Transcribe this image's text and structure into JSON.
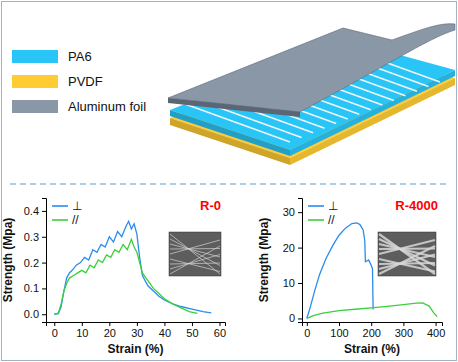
{
  "diagram": {
    "legend": [
      {
        "label": "PA6",
        "color": "#29c5f6"
      },
      {
        "label": "PVDF",
        "color": "#ffcc33"
      },
      {
        "label": "Aluminum foil",
        "color": "#8a97a6"
      }
    ]
  },
  "chart_data": [
    {
      "type": "line",
      "title": "R-0",
      "x_label": "Strain (%)",
      "y_label": "Strength (Mpa)",
      "xlim": [
        -3,
        62
      ],
      "xticks": [
        0,
        10,
        20,
        30,
        40,
        50,
        60
      ],
      "ylim": [
        -0.03,
        0.45
      ],
      "yticks": [
        {
          "value": 0,
          "label": "0.0"
        },
        0.1,
        0.2,
        0.3,
        0.4
      ],
      "legend": "upper left",
      "series": [
        {
          "name": "⊥",
          "color": "#2a8cf0",
          "x": [
            0,
            1.5,
            2.5,
            3.5,
            4.5,
            5.5,
            6.5,
            8,
            9.5,
            11,
            12.5,
            14,
            15.5,
            17,
            18.5,
            20,
            21.5,
            23,
            24.5,
            26,
            27,
            28,
            29,
            30,
            31,
            32,
            34,
            36,
            38,
            40,
            43,
            46,
            50,
            54,
            57
          ],
          "values": [
            0,
            0.002,
            0.03,
            0.09,
            0.14,
            0.16,
            0.17,
            0.19,
            0.2,
            0.22,
            0.21,
            0.25,
            0.24,
            0.27,
            0.26,
            0.3,
            0.28,
            0.32,
            0.3,
            0.34,
            0.36,
            0.33,
            0.35,
            0.31,
            0.22,
            0.15,
            0.11,
            0.09,
            0.07,
            0.055,
            0.04,
            0.03,
            0.02,
            0.01,
            0.005
          ]
        },
        {
          "name": "//",
          "color": "#3ccf3c",
          "x": [
            0,
            1.5,
            2.5,
            3.5,
            4.5,
            5.5,
            7,
            8.5,
            10,
            11.5,
            13,
            14.5,
            16,
            17.5,
            19,
            20.5,
            22,
            23.5,
            25,
            26.5,
            28,
            29,
            30,
            31,
            32,
            34,
            36,
            38,
            40,
            43,
            46,
            49,
            52
          ],
          "values": [
            0,
            0.005,
            0.04,
            0.09,
            0.12,
            0.14,
            0.15,
            0.16,
            0.17,
            0.16,
            0.19,
            0.18,
            0.21,
            0.2,
            0.23,
            0.22,
            0.25,
            0.24,
            0.27,
            0.25,
            0.29,
            0.26,
            0.24,
            0.2,
            0.16,
            0.13,
            0.1,
            0.08,
            0.06,
            0.04,
            0.025,
            0.01,
            0.003
          ]
        }
      ]
    },
    {
      "type": "line",
      "title": "R-4000",
      "x_label": "Strain (%)",
      "y_label": "Strength (Mpa)",
      "xlim": [
        -15,
        420
      ],
      "xticks": [
        0,
        100,
        200,
        300,
        400
      ],
      "ylim": [
        -1,
        34
      ],
      "yticks": [
        0,
        10,
        20,
        30
      ],
      "legend": "upper left",
      "series": [
        {
          "name": "⊥",
          "color": "#2a8cf0",
          "x": [
            0,
            10,
            25,
            40,
            60,
            80,
            100,
            120,
            140,
            155,
            165,
            175,
            180,
            182,
            192,
            200,
            204,
            206
          ],
          "values": [
            0,
            3,
            8,
            12.5,
            17,
            20.5,
            23.5,
            25.5,
            26.8,
            27,
            26.5,
            25,
            22,
            16,
            16.5,
            15,
            14,
            2.5
          ]
        },
        {
          "name": "//",
          "color": "#3ccf3c",
          "x": [
            0,
            20,
            50,
            100,
            150,
            200,
            250,
            300,
            340,
            360,
            380,
            395,
            405
          ],
          "values": [
            0,
            0.8,
            1.5,
            2.2,
            2.6,
            3,
            3.4,
            3.9,
            4.3,
            4.4,
            3.5,
            1.5,
            0.5
          ]
        }
      ]
    }
  ]
}
